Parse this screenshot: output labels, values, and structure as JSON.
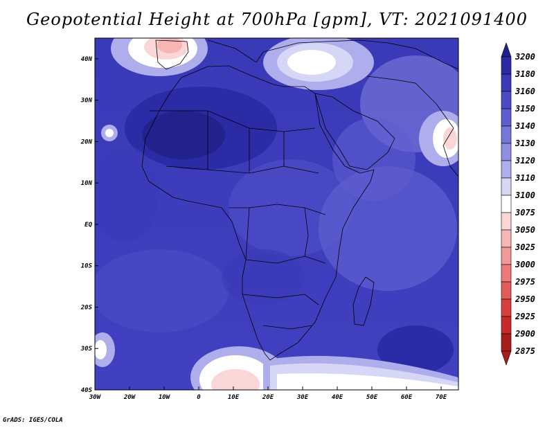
{
  "title": "Geopotential Height at 700hPa [gpm], VT: 2021091400",
  "footer": "GrADS: IGES/COLA",
  "map": {
    "projection": "latlon",
    "lon_range": [
      -30,
      75
    ],
    "lat_range": [
      -40,
      45
    ],
    "lat_ticks": [
      "40N",
      "30N",
      "20N",
      "10N",
      "EQ",
      "10S",
      "20S",
      "30S",
      "40S"
    ],
    "lon_ticks": [
      "30W",
      "20W",
      "10W",
      "0",
      "10E",
      "20E",
      "30E",
      "40E",
      "50E",
      "60E",
      "70E"
    ],
    "field": "700hPa geopotential height",
    "units": "gpm"
  },
  "colorbar": {
    "levels": [
      "3200",
      "3180",
      "3160",
      "3150",
      "3140",
      "3130",
      "3120",
      "3110",
      "3100",
      "3075",
      "3050",
      "3025",
      "3000",
      "2975",
      "2950",
      "2925",
      "2900",
      "2875"
    ],
    "colors": [
      "#22228c",
      "#2b2ba6",
      "#3a3ab8",
      "#4b4bc6",
      "#5e5ed0",
      "#7575da",
      "#8e8ee2",
      "#aeaeec",
      "#d6d6f6",
      "#ffffff",
      "#fbd6d6",
      "#f6b6b6",
      "#f29898",
      "#ec7a7a",
      "#e25c5c",
      "#d84040",
      "#c62a2a",
      "#a81c1c"
    ]
  }
}
